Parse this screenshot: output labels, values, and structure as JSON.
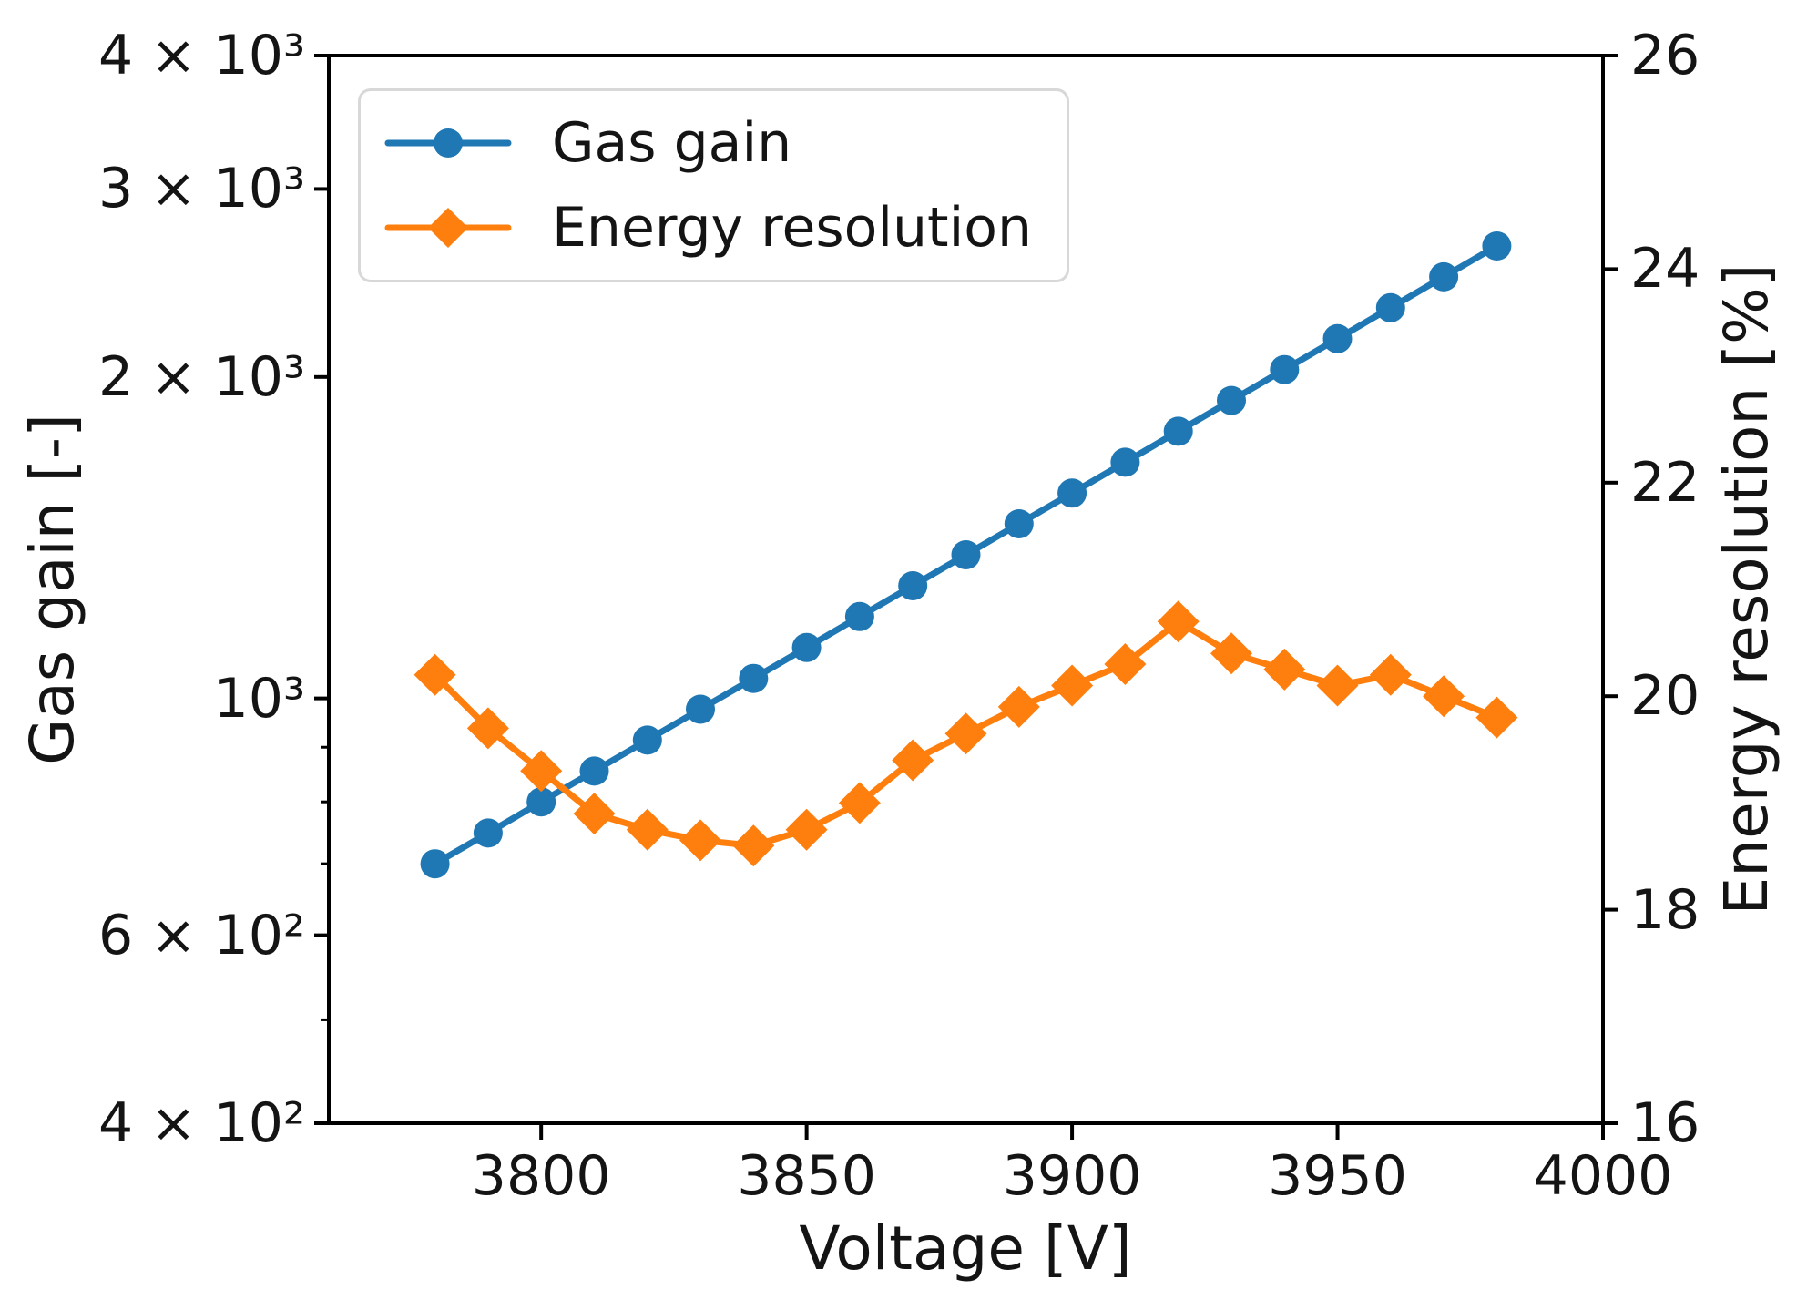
{
  "figure": {
    "xlabel": "Voltage [V]",
    "ylabel_left": "Gas gain [-]",
    "ylabel_right": "Energy resolution [%]",
    "background": "#ffffff",
    "text_color": "#141414",
    "spine_color": "#000000"
  },
  "legend": {
    "position": "upper left",
    "items": [
      {
        "label": "Gas gain",
        "color": "#1f77b4",
        "marker": "circle"
      },
      {
        "label": "Energy resolution",
        "color": "#ff7f0e",
        "marker": "diamond"
      }
    ]
  },
  "axes": {
    "x": {
      "label": "Voltage [V]",
      "lim": [
        3760,
        4000
      ],
      "ticks": [
        3800,
        3850,
        3900,
        3950,
        4000
      ],
      "tick_labels": [
        "3800",
        "3850",
        "3900",
        "3950",
        "4000"
      ]
    },
    "y_left": {
      "label": "Gas gain [-]",
      "scale": "log",
      "lim": [
        400,
        4000
      ],
      "major_ticks": [
        4000,
        3000,
        2000,
        1000,
        600,
        400
      ],
      "major_tick_labels": [
        "4 × 10³",
        "3 × 10³",
        "2 × 10³",
        "10³",
        "6 × 10²",
        "4 × 10²"
      ],
      "minor_ticks": [
        900,
        800,
        700,
        500
      ]
    },
    "y_right": {
      "label": "Energy resolution [%]",
      "scale": "linear",
      "lim": [
        16,
        26
      ],
      "ticks": [
        16,
        18,
        20,
        22,
        24,
        26
      ],
      "tick_labels": [
        "16",
        "18",
        "20",
        "22",
        "24",
        "26"
      ]
    }
  },
  "chart_data": {
    "type": "line",
    "title": "",
    "xlabel": "Voltage [V]",
    "ylabel": "Gas gain [-]",
    "ylabel_right": "Energy resolution [%]",
    "x_range": [
      3760,
      4000
    ],
    "y_left_range": [
      400,
      4000
    ],
    "y_left_scale": "log",
    "y_right_range": [
      16,
      26
    ],
    "grid": false,
    "legend_position": "upper left",
    "x": [
      3780,
      3790,
      3800,
      3810,
      3820,
      3830,
      3840,
      3850,
      3860,
      3870,
      3880,
      3890,
      3900,
      3910,
      3920,
      3930,
      3940,
      3950,
      3960,
      3970,
      3980
    ],
    "series": [
      {
        "name": "Gas gain",
        "axis": "left",
        "color": "#1f77b4",
        "marker": "circle",
        "values": [
          700,
          748,
          800,
          855,
          914,
          977,
          1044,
          1116,
          1193,
          1275,
          1363,
          1457,
          1557,
          1664,
          1779,
          1901,
          2032,
          2172,
          2322,
          2482,
          2653
        ]
      },
      {
        "name": "Energy resolution",
        "axis": "right",
        "color": "#ff7f0e",
        "marker": "diamond",
        "values": [
          20.2,
          19.7,
          19.3,
          18.9,
          18.75,
          18.65,
          18.6,
          18.75,
          19.0,
          19.4,
          19.65,
          19.9,
          20.1,
          20.3,
          20.7,
          20.4,
          20.25,
          20.1,
          20.2,
          20.0,
          19.8
        ]
      }
    ]
  }
}
